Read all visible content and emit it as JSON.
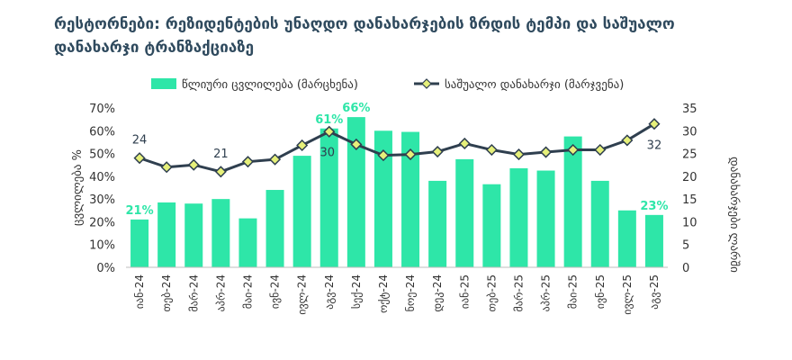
{
  "chart_data": {
    "type": "bar+line",
    "title": "რესტორნები: რეზიდენტების უნაღდო დანახარჯების ზრდის ტემპი და საშუალო დანახარჯი ტრანზაქციაზე",
    "categories": [
      "იან-24",
      "თებ-24",
      "მარ-24",
      "აპრ-24",
      "მაი-24",
      "ივნ-24",
      "ივლ-24",
      "აგვ-24",
      "სექ-24",
      "ოქტ-24",
      "ნოე-24",
      "დეკ-24",
      "იან-25",
      "თებ-25",
      "მარ-25",
      "აპრ-25",
      "მაი-25",
      "ივნ-25",
      "ივლ-25",
      "აგვ-25"
    ],
    "series": [
      {
        "name": "წლიური ცვლილება (მარცხენა)",
        "type": "bar",
        "axis": "left",
        "color": "#2ee6a8",
        "values": [
          21,
          28.5,
          28,
          30,
          21.5,
          34,
          49,
          61,
          66,
          60,
          59.5,
          38,
          47.5,
          36.5,
          43.5,
          42.5,
          57.5,
          38,
          25,
          23
        ]
      },
      {
        "name": "საშუალო დანახარჯი (მარჯვენა)",
        "type": "line",
        "axis": "right",
        "color": "#2f3f4f",
        "marker_color": "#e6f07a",
        "values": [
          24,
          22,
          22.5,
          21,
          23.2,
          23.7,
          26.8,
          29.8,
          27,
          24.6,
          24.8,
          25.4,
          27.2,
          25.8,
          24.8,
          25.3,
          25.8,
          25.8,
          27.9,
          31.5
        ]
      }
    ],
    "left_axis": {
      "label": "ცვლილება %",
      "ylim": [
        0,
        70
      ],
      "ticks": [
        "0%",
        "10%",
        "20%",
        "30%",
        "40%",
        "50%",
        "60%",
        "70%"
      ]
    },
    "right_axis": {
      "label": "დანახარჯები ლარში",
      "ylim": [
        0,
        35
      ],
      "ticks": [
        "0",
        "5",
        "10",
        "15",
        "20",
        "25",
        "30",
        "35"
      ]
    },
    "bar_labels": [
      {
        "index": 0,
        "text": "21%"
      },
      {
        "index": 7,
        "text": "61%"
      },
      {
        "index": 8,
        "text": "66%"
      },
      {
        "index": 19,
        "text": "23%"
      }
    ],
    "line_labels": [
      {
        "index": 0,
        "text": "24"
      },
      {
        "index": 3,
        "text": "21"
      },
      {
        "index": 7,
        "text": "30"
      },
      {
        "index": 19,
        "text": "32"
      }
    ],
    "legend": [
      {
        "label": "წლიური ცვლილება (მარცხენა)",
        "kind": "bar"
      },
      {
        "label": "საშუალო დანახარჯი (მარჯვენა)",
        "kind": "line"
      }
    ],
    "legend_position": "top-center",
    "grid": false
  }
}
